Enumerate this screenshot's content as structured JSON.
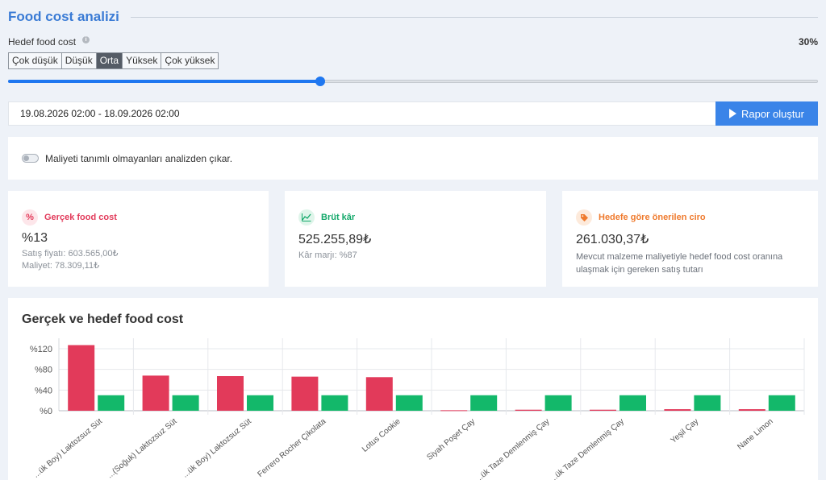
{
  "page": {
    "title": "Food cost analizi"
  },
  "target": {
    "label": "Hedef food cost",
    "info_icon": "info-icon",
    "value_text": "30%",
    "value": 30,
    "slider_fraction": 0.385,
    "levels": [
      "Çok düşük",
      "Düşük",
      "Orta",
      "Yüksek",
      "Çok yüksek"
    ],
    "selected_level": "Orta"
  },
  "date_range": {
    "value": "19.08.2026 02:00 - 18.09.2026 02:00"
  },
  "report_button": {
    "label": "Rapor oluştur",
    "icon": "play-icon"
  },
  "exclude_toggle": {
    "label": "Maliyeti tanımlı olmayanları analizden çıkar.",
    "checked": false
  },
  "cards": {
    "food_cost": {
      "icon": "percent-icon",
      "title": "Gerçek food cost",
      "value": "%13",
      "sale_price": "Satış fiyatı: 603.565,00₺",
      "cost": "Maliyet: 78.309,11₺"
    },
    "gross_profit": {
      "icon": "chart-line-icon",
      "title": "Brüt kâr",
      "value": "525.255,89₺",
      "margin": "Kâr marjı: %87"
    },
    "suggested": {
      "icon": "tag-icon",
      "title": "Hedefe göre önerilen ciro",
      "value": "261.030,37₺",
      "description": "Mevcut malzeme maliyetiyle hedef food cost oranına ulaşmak için gereken satış tutarı"
    }
  },
  "colors": {
    "accent": "#3a7bd5",
    "actual": "#e23a5a",
    "target": "#13b86a",
    "food_cost": "#e23a5a",
    "profit": "#13a86a",
    "suggested": "#ef7a2d"
  },
  "chart_data": {
    "type": "bar",
    "title": "Gerçek ve hedef food cost",
    "categories": [
      "...ük Boy) Laktozsuz Süt",
      "...(Soğuk) Laktozsuz Süt",
      "...ük Boy) Laktozsuz Süt",
      "Ferrero Rocher Çikolata",
      "Lotus Cookie",
      "Siyah Poşet Çay",
      "...ük Taze Demlenmiş Çay",
      "...ük Taze Demlenmiş Çay",
      "Yeşil Çay",
      "Nane Limon"
    ],
    "series": [
      {
        "values": [
          127,
          68,
          67,
          66,
          65,
          1,
          2,
          2,
          3,
          3
        ]
      },
      {
        "values": [
          30,
          30,
          30,
          30,
          30,
          30,
          30,
          30,
          30,
          30
        ]
      }
    ],
    "y_ticks": [
      "%0",
      "%40",
      "%80",
      "%120"
    ],
    "ylim": [
      0,
      120
    ],
    "grid": true
  }
}
